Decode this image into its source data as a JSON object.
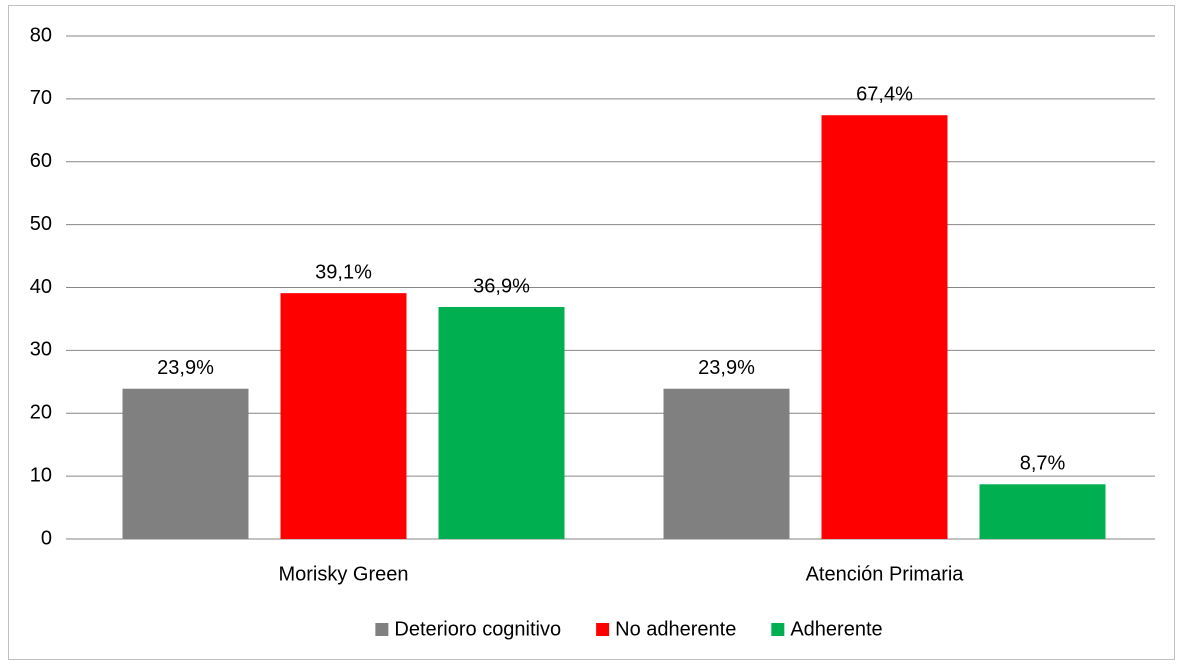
{
  "chart_data": {
    "type": "bar",
    "categories": [
      "Morisky Green",
      "Atención Primaria"
    ],
    "series": [
      {
        "name": "Deterioro cognitivo",
        "color": "#808080",
        "values": [
          23.9,
          23.9
        ],
        "value_labels": [
          "23,9%",
          "23,9%"
        ]
      },
      {
        "name": "No adherente",
        "color": "#ff0000",
        "values": [
          39.1,
          67.4
        ],
        "value_labels": [
          "39,1%",
          "67,4%"
        ]
      },
      {
        "name": "Adherente",
        "color": "#00b050",
        "values": [
          36.9,
          8.7
        ],
        "value_labels": [
          "36,9%",
          "8,7%"
        ]
      }
    ],
    "ylim": [
      0,
      80
    ],
    "yticks": [
      0,
      10,
      20,
      30,
      40,
      50,
      60,
      70,
      80
    ],
    "grid": true,
    "legend": "bottom"
  }
}
